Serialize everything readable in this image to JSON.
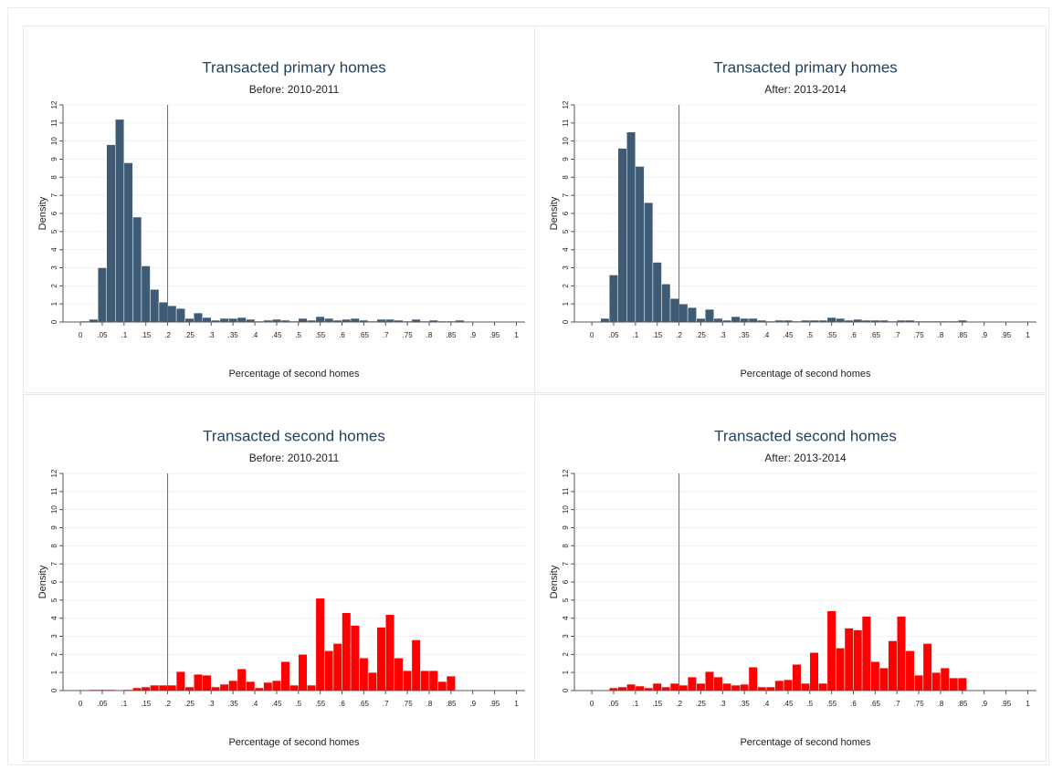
{
  "chart_data": [
    {
      "type": "histogram",
      "title": "Transacted primary homes",
      "subtitle": "Before: 2010-2011",
      "xlabel": "Percentage of second homes",
      "ylabel": "Density",
      "color": "#3e5b76",
      "xline": 0.2,
      "xline_color": "#e8323a",
      "grid": true,
      "bins": [
        0,
        0.02,
        0.04,
        0.06,
        0.08,
        0.1,
        0.12,
        0.14,
        0.16,
        0.18,
        0.2,
        0.22,
        0.24,
        0.26,
        0.28,
        0.3,
        0.32,
        0.34,
        0.36,
        0.38,
        0.4,
        0.42,
        0.44,
        0.46,
        0.48,
        0.5,
        0.52,
        0.54,
        0.56,
        0.58,
        0.6,
        0.62,
        0.64,
        0.66,
        0.68,
        0.7,
        0.72,
        0.74,
        0.76,
        0.78,
        0.8,
        0.82,
        0.84,
        0.86,
        0.88
      ],
      "values": [
        0.05,
        0.15,
        3.0,
        9.8,
        11.2,
        8.8,
        5.8,
        3.1,
        1.8,
        1.1,
        0.9,
        0.75,
        0.2,
        0.5,
        0.25,
        0.1,
        0.2,
        0.2,
        0.25,
        0.15,
        0.05,
        0.1,
        0.15,
        0.1,
        0.05,
        0.2,
        0.1,
        0.3,
        0.2,
        0.1,
        0.15,
        0.2,
        0.1,
        0.05,
        0.15,
        0.15,
        0.1,
        0.05,
        0.15,
        0.05,
        0.1,
        0.05,
        0.05,
        0.1
      ],
      "xlim": [
        -0.04,
        1.02
      ],
      "ylim": [
        0,
        12
      ],
      "xticks": [
        0,
        {
          "value": 0.05,
          "label": ".05"
        },
        {
          "value": 0.1,
          "label": ".1"
        },
        {
          "value": 0.15,
          "label": ".15"
        },
        {
          "value": 0.2,
          "label": ".2"
        },
        {
          "value": 0.25,
          "label": ".25"
        },
        {
          "value": 0.3,
          "label": ".3"
        },
        {
          "value": 0.35,
          "label": ".35"
        },
        {
          "value": 0.4,
          "label": ".4"
        },
        {
          "value": 0.45,
          "label": ".45"
        },
        {
          "value": 0.5,
          "label": ".5"
        },
        {
          "value": 0.55,
          "label": ".55"
        },
        {
          "value": 0.6,
          "label": ".6"
        },
        {
          "value": 0.65,
          "label": ".65"
        },
        {
          "value": 0.7,
          "label": ".7"
        },
        {
          "value": 0.75,
          "label": ".75"
        },
        {
          "value": 0.8,
          "label": ".8"
        },
        {
          "value": 0.85,
          "label": ".85"
        },
        {
          "value": 0.9,
          "label": ".9"
        },
        {
          "value": 0.95,
          "label": ".95"
        },
        1
      ],
      "yticks": [
        0,
        1,
        2,
        3,
        4,
        5,
        6,
        7,
        8,
        9,
        10,
        11,
        12
      ]
    },
    {
      "type": "histogram",
      "title": "Transacted primary homes",
      "subtitle": "After: 2013-2014",
      "xlabel": "Percentage of second homes",
      "ylabel": "Density",
      "color": "#3e5b76",
      "xline": 0.2,
      "xline_color": "#e8323a",
      "grid": true,
      "bins": [
        0,
        0.02,
        0.04,
        0.06,
        0.08,
        0.1,
        0.12,
        0.14,
        0.16,
        0.18,
        0.2,
        0.22,
        0.24,
        0.26,
        0.28,
        0.3,
        0.32,
        0.34,
        0.36,
        0.38,
        0.4,
        0.42,
        0.44,
        0.46,
        0.48,
        0.5,
        0.52,
        0.54,
        0.56,
        0.58,
        0.6,
        0.62,
        0.64,
        0.66,
        0.68,
        0.7,
        0.72,
        0.74,
        0.76,
        0.78,
        0.8,
        0.82,
        0.84,
        0.86,
        0.88
      ],
      "values": [
        0,
        0.2,
        2.6,
        9.6,
        10.5,
        8.6,
        6.6,
        3.3,
        2.1,
        1.3,
        1.0,
        0.8,
        0.2,
        0.7,
        0.2,
        0.1,
        0.3,
        0.2,
        0.2,
        0.1,
        0.05,
        0.1,
        0.1,
        0.05,
        0.1,
        0.1,
        0.1,
        0.25,
        0.2,
        0.1,
        0.15,
        0.1,
        0.1,
        0.1,
        0.05,
        0.1,
        0.1,
        0.05,
        0.05,
        0.05,
        0.05,
        0.05,
        0.1,
        0
      ],
      "xlim": [
        -0.04,
        1.02
      ],
      "ylim": [
        0,
        12
      ],
      "xticks": [
        0,
        {
          "value": 0.05,
          "label": ".05"
        },
        {
          "value": 0.1,
          "label": ".1"
        },
        {
          "value": 0.15,
          "label": ".15"
        },
        {
          "value": 0.2,
          "label": ".2"
        },
        {
          "value": 0.25,
          "label": ".25"
        },
        {
          "value": 0.3,
          "label": ".3"
        },
        {
          "value": 0.35,
          "label": ".35"
        },
        {
          "value": 0.4,
          "label": ".4"
        },
        {
          "value": 0.45,
          "label": ".45"
        },
        {
          "value": 0.5,
          "label": ".5"
        },
        {
          "value": 0.55,
          "label": ".55"
        },
        {
          "value": 0.6,
          "label": ".6"
        },
        {
          "value": 0.65,
          "label": ".65"
        },
        {
          "value": 0.7,
          "label": ".7"
        },
        {
          "value": 0.75,
          "label": ".75"
        },
        {
          "value": 0.8,
          "label": ".8"
        },
        {
          "value": 0.85,
          "label": ".85"
        },
        {
          "value": 0.9,
          "label": ".9"
        },
        {
          "value": 0.95,
          "label": ".95"
        },
        1
      ],
      "yticks": [
        0,
        1,
        2,
        3,
        4,
        5,
        6,
        7,
        8,
        9,
        10,
        11,
        12
      ]
    },
    {
      "type": "histogram",
      "title": "Transacted second homes",
      "subtitle": "Before: 2010-2011",
      "xlabel": "Percentage of second homes",
      "ylabel": "Density",
      "color": "#ff0000",
      "xline": 0.2,
      "xline_color": "#e8323a",
      "grid": true,
      "bins": [
        0,
        0.02,
        0.04,
        0.06,
        0.08,
        0.1,
        0.12,
        0.14,
        0.16,
        0.18,
        0.2,
        0.22,
        0.24,
        0.26,
        0.28,
        0.3,
        0.32,
        0.34,
        0.36,
        0.38,
        0.4,
        0.42,
        0.44,
        0.46,
        0.48,
        0.5,
        0.52,
        0.54,
        0.56,
        0.58,
        0.6,
        0.62,
        0.64,
        0.66,
        0.68,
        0.7,
        0.72,
        0.74,
        0.76,
        0.78,
        0.8,
        0.82,
        0.84,
        0.86,
        0.88
      ],
      "values": [
        0,
        0.05,
        0.05,
        0.05,
        0,
        0.05,
        0.15,
        0.2,
        0.3,
        0.3,
        0.3,
        1.05,
        0.2,
        0.9,
        0.85,
        0.2,
        0.35,
        0.55,
        1.2,
        0.5,
        0.15,
        0.45,
        0.55,
        1.6,
        0.3,
        2.0,
        0.3,
        5.1,
        2.2,
        2.6,
        4.3,
        3.6,
        1.8,
        1.0,
        3.5,
        4.2,
        1.8,
        1.1,
        2.8,
        1.1,
        1.1,
        0.5,
        0.8,
        0
      ],
      "xlim": [
        -0.04,
        1.02
      ],
      "ylim": [
        0,
        12
      ],
      "xticks": [
        0,
        {
          "value": 0.05,
          "label": ".05"
        },
        {
          "value": 0.1,
          "label": ".1"
        },
        {
          "value": 0.15,
          "label": ".15"
        },
        {
          "value": 0.2,
          "label": ".2"
        },
        {
          "value": 0.25,
          "label": ".25"
        },
        {
          "value": 0.3,
          "label": ".3"
        },
        {
          "value": 0.35,
          "label": ".35"
        },
        {
          "value": 0.4,
          "label": ".4"
        },
        {
          "value": 0.45,
          "label": ".45"
        },
        {
          "value": 0.5,
          "label": ".5"
        },
        {
          "value": 0.55,
          "label": ".55"
        },
        {
          "value": 0.6,
          "label": ".6"
        },
        {
          "value": 0.65,
          "label": ".65"
        },
        {
          "value": 0.7,
          "label": ".7"
        },
        {
          "value": 0.75,
          "label": ".75"
        },
        {
          "value": 0.8,
          "label": ".8"
        },
        {
          "value": 0.85,
          "label": ".85"
        },
        {
          "value": 0.9,
          "label": ".9"
        },
        {
          "value": 0.95,
          "label": ".95"
        },
        1
      ],
      "yticks": [
        0,
        1,
        2,
        3,
        4,
        5,
        6,
        7,
        8,
        9,
        10,
        11,
        12
      ]
    },
    {
      "type": "histogram",
      "title": "Transacted second homes",
      "subtitle": "After: 2013-2014",
      "xlabel": "Percentage of second homes",
      "ylabel": "Density",
      "color": "#ff0000",
      "xline": 0.2,
      "xline_color": "#e8323a",
      "grid": true,
      "bins": [
        0,
        0.02,
        0.04,
        0.06,
        0.08,
        0.1,
        0.12,
        0.14,
        0.16,
        0.18,
        0.2,
        0.22,
        0.24,
        0.26,
        0.28,
        0.3,
        0.32,
        0.34,
        0.36,
        0.38,
        0.4,
        0.42,
        0.44,
        0.46,
        0.48,
        0.5,
        0.52,
        0.54,
        0.56,
        0.58,
        0.6,
        0.62,
        0.64,
        0.66,
        0.68,
        0.7,
        0.72,
        0.74,
        0.76,
        0.78,
        0.8,
        0.82,
        0.84,
        0.86,
        0.88
      ],
      "values": [
        0,
        0,
        0.15,
        0.2,
        0.35,
        0.25,
        0.15,
        0.4,
        0.2,
        0.4,
        0.3,
        0.75,
        0.4,
        1.05,
        0.75,
        0.4,
        0.3,
        0.35,
        1.3,
        0.2,
        0.2,
        0.55,
        0.6,
        1.45,
        0.4,
        2.1,
        0.4,
        4.4,
        2.35,
        3.45,
        3.35,
        4.1,
        1.6,
        1.25,
        2.75,
        4.1,
        2.2,
        0.85,
        2.6,
        1.0,
        1.25,
        0.7,
        0.7,
        0
      ],
      "xlim": [
        -0.04,
        1.02
      ],
      "ylim": [
        0,
        12
      ],
      "xticks": [
        0,
        {
          "value": 0.05,
          "label": ".05"
        },
        {
          "value": 0.1,
          "label": ".1"
        },
        {
          "value": 0.15,
          "label": ".15"
        },
        {
          "value": 0.2,
          "label": ".2"
        },
        {
          "value": 0.25,
          "label": ".25"
        },
        {
          "value": 0.3,
          "label": ".3"
        },
        {
          "value": 0.35,
          "label": ".35"
        },
        {
          "value": 0.4,
          "label": ".4"
        },
        {
          "value": 0.45,
          "label": ".45"
        },
        {
          "value": 0.5,
          "label": ".5"
        },
        {
          "value": 0.55,
          "label": ".55"
        },
        {
          "value": 0.6,
          "label": ".6"
        },
        {
          "value": 0.65,
          "label": ".65"
        },
        {
          "value": 0.7,
          "label": ".7"
        },
        {
          "value": 0.75,
          "label": ".75"
        },
        {
          "value": 0.8,
          "label": ".8"
        },
        {
          "value": 0.85,
          "label": ".85"
        },
        {
          "value": 0.9,
          "label": ".9"
        },
        {
          "value": 0.95,
          "label": ".95"
        },
        1
      ],
      "yticks": [
        0,
        1,
        2,
        3,
        4,
        5,
        6,
        7,
        8,
        9,
        10,
        11,
        12
      ]
    }
  ]
}
